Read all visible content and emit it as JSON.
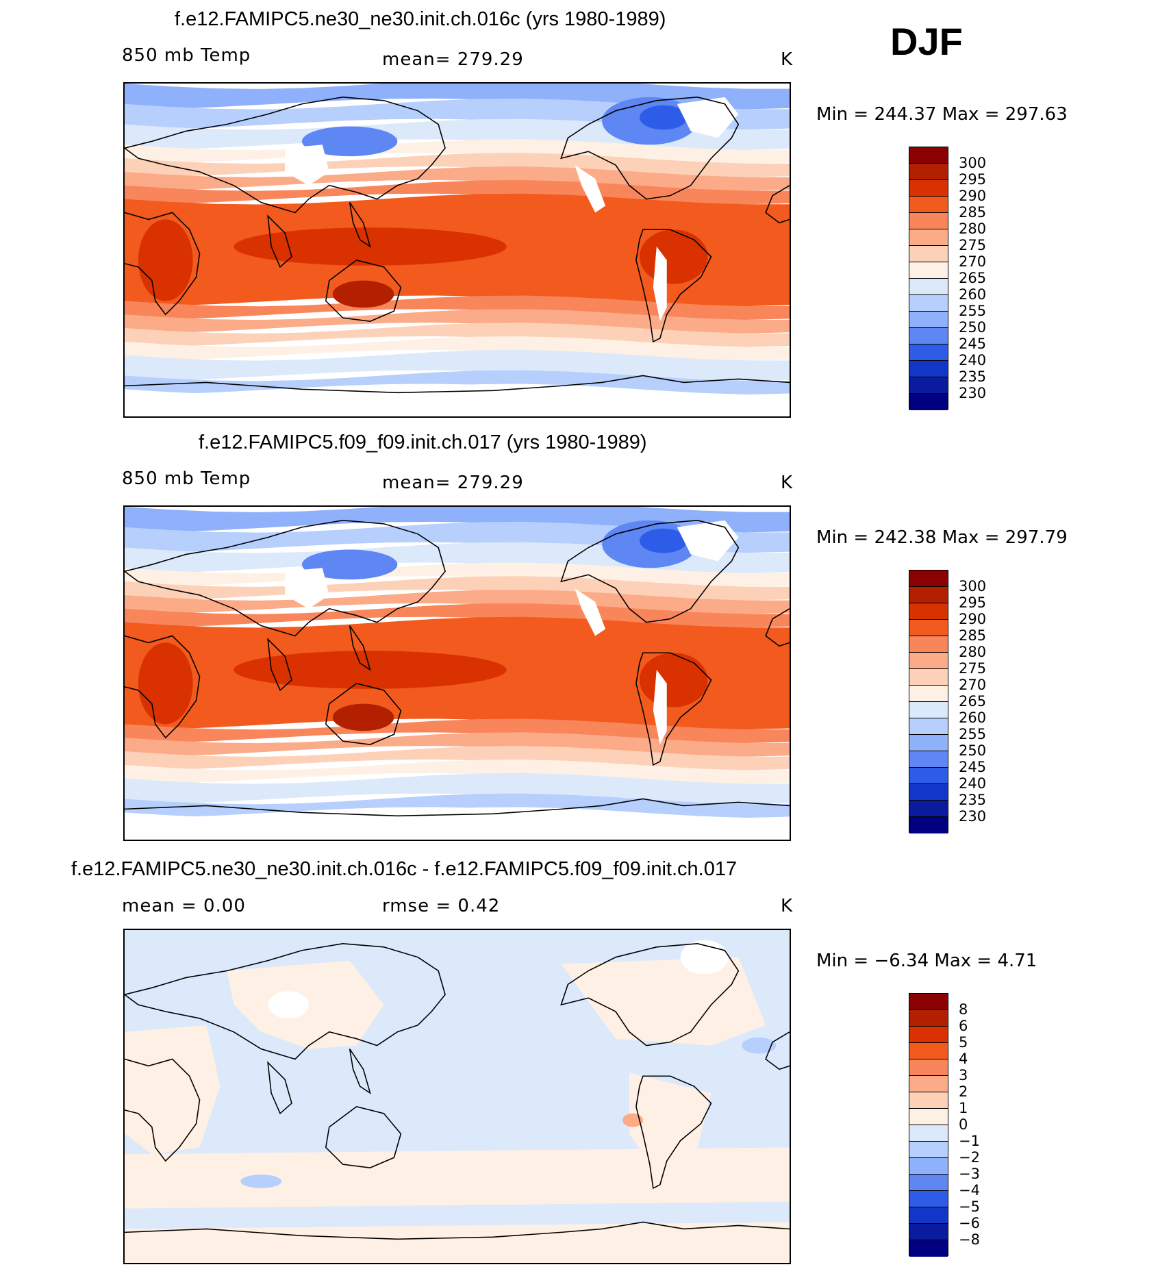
{
  "season": "DJF",
  "panels": [
    {
      "title": "f.e12.FAMIPC5.ne30_ne30.init.ch.016c (yrs 1980-1989)",
      "variable": "850 mb Temp",
      "stat": "mean= 279.29",
      "units": "K",
      "minmax": "Min = 244.37 Max = 297.63",
      "colorbar": {
        "labels": [
          "300",
          "295",
          "290",
          "285",
          "280",
          "275",
          "270",
          "265",
          "260",
          "255",
          "250",
          "245",
          "240",
          "235",
          "230"
        ],
        "colors": [
          "#8b0000",
          "#b22000",
          "#d93200",
          "#f25a1e",
          "#f9855a",
          "#fcab88",
          "#fdd0b8",
          "#fef0e4",
          "#dbe9fb",
          "#b6cffc",
          "#8fb0fa",
          "#5e87f4",
          "#2d5de8",
          "#1237c8",
          "#0b1ba0",
          "#000080"
        ]
      },
      "map": {
        "kind": "temperature"
      }
    },
    {
      "title": "f.e12.FAMIPC5.f09_f09.init.ch.017 (yrs 1980-1989)",
      "variable": "850 mb Temp",
      "stat": "mean= 279.29",
      "units": "K",
      "minmax": "Min = 242.38 Max = 297.79",
      "colorbar": {
        "labels": [
          "300",
          "295",
          "290",
          "285",
          "280",
          "275",
          "270",
          "265",
          "260",
          "255",
          "250",
          "245",
          "240",
          "235",
          "230"
        ],
        "colors": [
          "#8b0000",
          "#b22000",
          "#d93200",
          "#f25a1e",
          "#f9855a",
          "#fcab88",
          "#fdd0b8",
          "#fef0e4",
          "#dbe9fb",
          "#b6cffc",
          "#8fb0fa",
          "#5e87f4",
          "#2d5de8",
          "#1237c8",
          "#0b1ba0",
          "#000080"
        ]
      },
      "map": {
        "kind": "temperature"
      }
    },
    {
      "title": "f.e12.FAMIPC5.ne30_ne30.init.ch.016c - f.e12.FAMIPC5.f09_f09.init.ch.017",
      "variable": "mean = 0.00",
      "stat": "rmse = 0.42",
      "units": "K",
      "minmax": "Min = −6.34 Max = 4.71",
      "colorbar": {
        "labels": [
          "8",
          "6",
          "5",
          "4",
          "3",
          "2",
          "1",
          "0",
          "−1",
          "−2",
          "−3",
          "−4",
          "−5",
          "−6",
          "−8"
        ],
        "colors": [
          "#8b0000",
          "#b22000",
          "#d93200",
          "#f25a1e",
          "#f9855a",
          "#fcab88",
          "#fdd0b8",
          "#fef0e4",
          "#dbe9fb",
          "#b6cffc",
          "#8fb0fa",
          "#5e87f4",
          "#2d5de8",
          "#1237c8",
          "#0b1ba0",
          "#000080"
        ]
      },
      "map": {
        "kind": "difference"
      }
    }
  ]
}
